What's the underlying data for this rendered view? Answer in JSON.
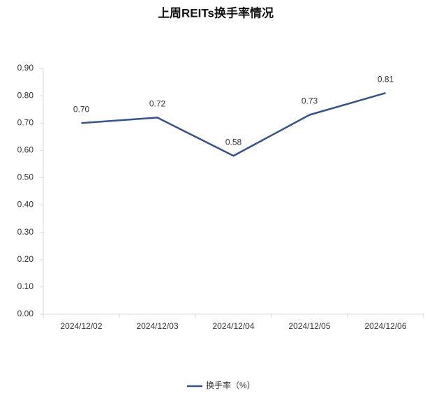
{
  "chart_data": {
    "type": "line",
    "title": "上周REITs换手率情况",
    "categories": [
      "2024/12/02",
      "2024/12/03",
      "2024/12/04",
      "2024/12/05",
      "2024/12/06"
    ],
    "series": [
      {
        "name": "换手率（%）",
        "color": "#34538a",
        "values": [
          0.7,
          0.72,
          0.58,
          0.73,
          0.81
        ],
        "value_labels": [
          "0.70",
          "0.72",
          "0.58",
          "0.73",
          "0.81"
        ]
      }
    ],
    "ylim": [
      0,
      0.9
    ],
    "yticks": [
      {
        "value": 0,
        "label": "0.00"
      },
      {
        "value": 0.1,
        "label": "0.10"
      },
      {
        "value": 0.2,
        "label": "0.20"
      },
      {
        "value": 0.3,
        "label": "0.30"
      },
      {
        "value": 0.4,
        "label": "0.40"
      },
      {
        "value": 0.5,
        "label": "0.50"
      },
      {
        "value": 0.6,
        "label": "0.60"
      },
      {
        "value": 0.7,
        "label": "0.70"
      },
      {
        "value": 0.8,
        "label": "0.80"
      },
      {
        "value": 0.9,
        "label": "0.90"
      }
    ],
    "legend": "bottom"
  }
}
